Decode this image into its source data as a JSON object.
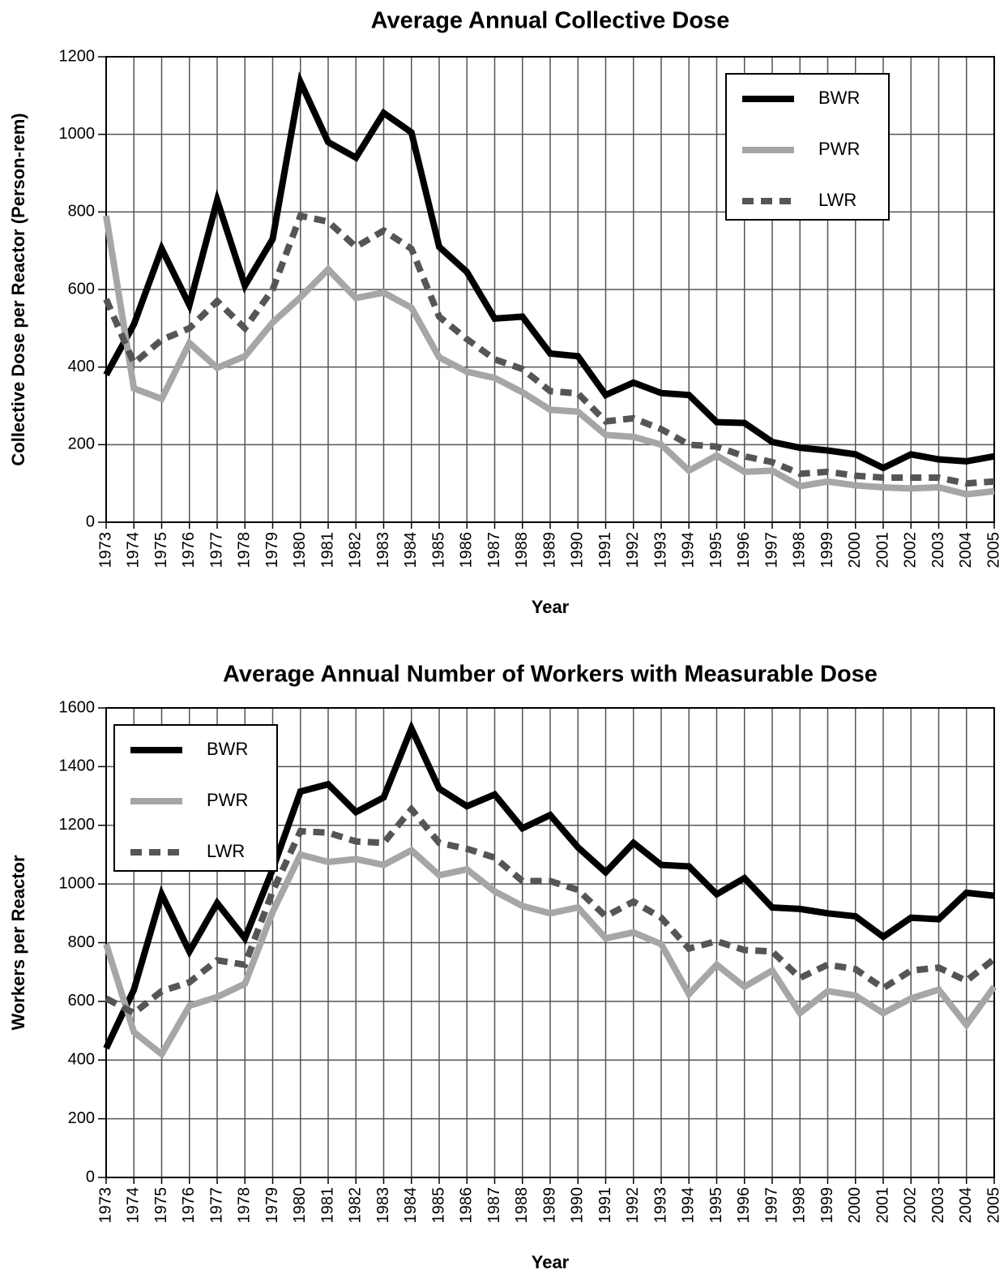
{
  "chart_data": [
    {
      "type": "line",
      "title": "Average Annual Collective Dose",
      "xlabel": "Year",
      "ylabel": "Collective Dose per Reactor (Person-rem)",
      "x": [
        1973,
        1974,
        1975,
        1976,
        1977,
        1978,
        1979,
        1980,
        1981,
        1982,
        1983,
        1984,
        1985,
        1986,
        1987,
        1988,
        1989,
        1990,
        1991,
        1992,
        1993,
        1994,
        1995,
        1996,
        1997,
        1998,
        1999,
        2000,
        2001,
        2002,
        2003,
        2004,
        2005
      ],
      "xlim": [
        1973,
        2005
      ],
      "ylim": [
        0,
        1200
      ],
      "yticks": [
        0,
        200,
        400,
        600,
        800,
        1000,
        1200
      ],
      "grid": true,
      "legend": "upper right",
      "series": [
        {
          "name": "BWR",
          "color": "#000000",
          "linestyle": "solid",
          "values": [
            380,
            510,
            705,
            560,
            830,
            610,
            730,
            1135,
            980,
            940,
            1055,
            1005,
            710,
            645,
            525,
            530,
            435,
            428,
            328,
            360,
            333,
            328,
            258,
            256,
            207,
            192,
            185,
            175,
            140,
            175,
            162,
            157,
            170
          ]
        },
        {
          "name": "PWR",
          "color": "#a6a6a6",
          "linestyle": "solid",
          "values": [
            790,
            345,
            318,
            462,
            398,
            428,
            515,
            580,
            652,
            578,
            592,
            553,
            425,
            388,
            372,
            335,
            290,
            285,
            225,
            220,
            200,
            133,
            172,
            130,
            133,
            93,
            105,
            95,
            90,
            87,
            90,
            72,
            80
          ]
        },
        {
          "name": "LWR",
          "color": "#555555",
          "linestyle": "dashed",
          "values": [
            575,
            410,
            470,
            500,
            570,
            500,
            600,
            790,
            775,
            710,
            752,
            705,
            530,
            472,
            420,
            395,
            338,
            332,
            260,
            268,
            240,
            200,
            195,
            170,
            155,
            125,
            130,
            120,
            115,
            115,
            115,
            100,
            105
          ]
        }
      ]
    },
    {
      "type": "line",
      "title": "Average Annual Number of Workers with Measurable Dose",
      "xlabel": "Year",
      "ylabel": "Workers per Reactor",
      "x": [
        1973,
        1974,
        1975,
        1976,
        1977,
        1978,
        1979,
        1980,
        1981,
        1982,
        1983,
        1984,
        1985,
        1986,
        1987,
        1988,
        1989,
        1990,
        1991,
        1992,
        1993,
        1994,
        1995,
        1996,
        1997,
        1998,
        1999,
        2000,
        2001,
        2002,
        2003,
        2004,
        2005
      ],
      "xlim": [
        1973,
        2005
      ],
      "ylim": [
        0,
        1600
      ],
      "yticks": [
        0,
        200,
        400,
        600,
        800,
        1000,
        1200,
        1400,
        1600
      ],
      "grid": true,
      "legend": "upper left",
      "series": [
        {
          "name": "BWR",
          "color": "#000000",
          "linestyle": "solid",
          "values": [
            440,
            640,
            965,
            770,
            935,
            815,
            1050,
            1315,
            1340,
            1245,
            1295,
            1530,
            1325,
            1265,
            1305,
            1190,
            1235,
            1125,
            1040,
            1140,
            1065,
            1060,
            965,
            1020,
            920,
            915,
            900,
            890,
            820,
            885,
            880,
            970,
            960
          ]
        },
        {
          "name": "PWR",
          "color": "#a6a6a6",
          "linestyle": "solid",
          "values": [
            795,
            495,
            420,
            585,
            615,
            660,
            905,
            1100,
            1075,
            1085,
            1065,
            1115,
            1030,
            1050,
            975,
            925,
            900,
            920,
            815,
            835,
            795,
            625,
            725,
            650,
            705,
            560,
            635,
            620,
            560,
            610,
            640,
            520,
            650
          ]
        },
        {
          "name": "LWR",
          "color": "#555555",
          "linestyle": "dashed",
          "values": [
            610,
            560,
            635,
            665,
            740,
            725,
            975,
            1180,
            1175,
            1145,
            1140,
            1255,
            1140,
            1120,
            1090,
            1010,
            1010,
            980,
            890,
            940,
            885,
            780,
            805,
            775,
            770,
            680,
            725,
            710,
            645,
            705,
            715,
            670,
            745
          ]
        }
      ]
    }
  ]
}
